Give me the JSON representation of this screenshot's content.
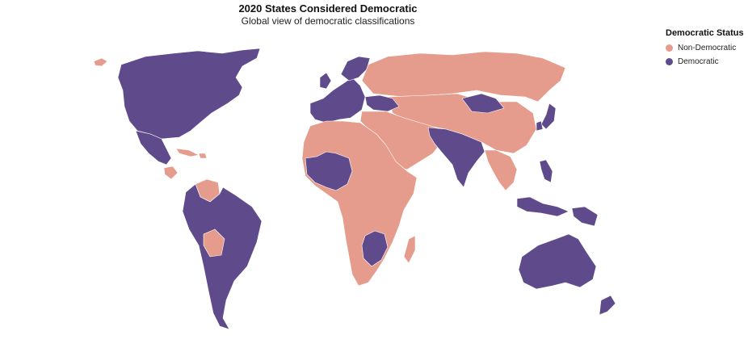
{
  "map": {
    "title": "2020 States Considered Democratic",
    "subtitle": "Global view of democratic classifications",
    "legend": {
      "title": "Democratic Status",
      "items": [
        {
          "label": "Non-Democratic",
          "color": "#e69c8c"
        },
        {
          "label": "Democratic",
          "color": "#5f4b8b"
        }
      ]
    },
    "colors": {
      "non_democratic": "#e69c8c",
      "democratic": "#5f4b8b",
      "border": "#ffffff"
    }
  }
}
